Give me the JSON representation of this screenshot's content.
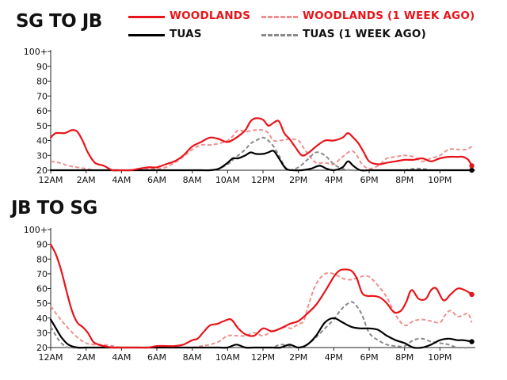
{
  "legend": [
    {
      "label": "WOODLANDS",
      "color": "#e8141a",
      "dash": false
    },
    {
      "label": "WOODLANDS (1 WEEK AGO)",
      "color": "#f08f8f",
      "dash": true
    },
    {
      "label": "TUAS",
      "color": "#000000",
      "dash": false
    },
    {
      "label": "TUAS (1 WEEK AGO)",
      "color": "#8a8a8a",
      "dash": true
    }
  ],
  "chart_data": [
    {
      "type": "line",
      "title": "SG TO JB",
      "xlabel": "",
      "ylabel": "",
      "ylim": [
        20,
        100
      ],
      "xlim": [
        0,
        24
      ],
      "yticks": [
        "20",
        "30",
        "40",
        "50",
        "60",
        "70",
        "80",
        "90",
        "100+"
      ],
      "xticks": [
        "12AM",
        "2AM",
        "4AM",
        "6AM",
        "8AM",
        "10AM",
        "12PM",
        "2PM",
        "4PM",
        "6PM",
        "8PM",
        "10PM"
      ],
      "grid": false,
      "series": [
        {
          "name": "WOODLANDS",
          "color": "#e8141a",
          "dashed": false,
          "width": 2.2,
          "endpoint": true,
          "x": [
            0,
            0.3,
            0.8,
            1.2,
            1.5,
            1.8,
            2.1,
            2.5,
            3,
            3.5,
            4,
            4.5,
            5,
            5.5,
            6,
            6.5,
            7,
            7.5,
            8,
            8.5,
            9,
            9.5,
            10,
            10.5,
            11,
            11.3,
            11.6,
            12,
            12.3,
            12.6,
            12.9,
            13.2,
            13.5,
            13.8,
            14.2,
            14.6,
            15,
            15.5,
            16,
            16.5,
            16.8,
            17.1,
            17.4,
            17.7,
            18,
            18.5,
            19,
            19.5,
            20,
            20.5,
            21,
            21.5,
            22,
            22.5,
            23,
            23.3,
            23.6,
            23.8
          ],
          "y": [
            42,
            45,
            45,
            47,
            46,
            40,
            32,
            25,
            23,
            20,
            20,
            20,
            21,
            22,
            22,
            24,
            26,
            30,
            36,
            39,
            42,
            41,
            39,
            42,
            47,
            53,
            55,
            54,
            50,
            52,
            53,
            45,
            41,
            36,
            30,
            32,
            36,
            40,
            40,
            42,
            45,
            42,
            38,
            32,
            26,
            24,
            25,
            26,
            27,
            27,
            28,
            26,
            28,
            29,
            29,
            29,
            27,
            23
          ]
        },
        {
          "name": "WOODLANDS (1 WEEK AGO)",
          "color": "#f08f8f",
          "dashed": true,
          "width": 2,
          "endpoint": false,
          "x": [
            0,
            0.5,
            1,
            1.5,
            2,
            2.5,
            3,
            3.5,
            4,
            4.5,
            5,
            5.5,
            6,
            6.5,
            7,
            7.5,
            8,
            8.5,
            9,
            9.5,
            10,
            10.3,
            10.6,
            11,
            11.5,
            12,
            12.3,
            12.6,
            13,
            13.5,
            14,
            14.3,
            14.6,
            15,
            15.5,
            16,
            16.3,
            16.6,
            17,
            17.3,
            17.6,
            18,
            18.5,
            19,
            19.5,
            20,
            20.5,
            21,
            21.5,
            22,
            22.5,
            23,
            23.5,
            23.8
          ],
          "y": [
            26,
            25,
            23,
            22,
            21,
            20,
            20,
            20,
            20,
            20,
            20,
            21,
            21,
            22,
            25,
            29,
            34,
            37,
            37,
            38,
            40,
            43,
            47,
            46,
            47,
            47,
            45,
            40,
            40,
            41,
            40,
            35,
            30,
            25,
            25,
            24,
            27,
            30,
            33,
            30,
            24,
            21,
            23,
            28,
            29,
            30,
            29,
            26,
            28,
            30,
            34,
            34,
            34,
            36
          ]
        },
        {
          "name": "TUAS",
          "color": "#000000",
          "dashed": false,
          "width": 2.2,
          "endpoint": true,
          "x": [
            0,
            1,
            2,
            3,
            4,
            5,
            6,
            7,
            8,
            8.5,
            9,
            9.5,
            10,
            10.3,
            10.6,
            11,
            11.3,
            11.6,
            12,
            12.3,
            12.6,
            12.9,
            13.3,
            13.7,
            14.2,
            14.7,
            15.2,
            15.6,
            16,
            16.5,
            16.8,
            17.1,
            17.5,
            18,
            18.5,
            19,
            19.5,
            20,
            21,
            22,
            23,
            23.8
          ],
          "y": [
            20,
            20,
            20,
            20,
            20,
            20,
            20,
            20,
            20,
            20,
            20,
            21,
            25,
            28,
            28,
            30,
            32,
            31,
            31,
            32,
            33,
            28,
            21,
            20,
            20,
            21,
            23,
            21,
            20,
            22,
            26,
            23,
            20,
            20,
            20,
            20,
            20,
            20,
            20,
            20,
            20,
            20
          ]
        },
        {
          "name": "TUAS (1 WEEK AGO)",
          "color": "#8a8a8a",
          "dashed": true,
          "width": 2,
          "endpoint": false,
          "x": [
            0,
            1,
            2,
            3,
            4,
            5,
            6,
            7,
            8,
            9,
            9.5,
            10,
            10.3,
            10.6,
            11,
            11.3,
            11.6,
            12,
            12.3,
            12.6,
            12.9,
            13.2,
            13.5,
            14,
            14.5,
            15,
            15.5,
            16,
            16.5,
            17,
            17.5,
            18,
            18.5,
            19,
            19.5,
            20,
            20.5,
            21,
            21.5,
            22,
            22.5,
            23,
            23.8
          ],
          "y": [
            20,
            20,
            20,
            20,
            20,
            20,
            20,
            20,
            20,
            20,
            21,
            24,
            27,
            30,
            34,
            38,
            40,
            42,
            40,
            36,
            30,
            23,
            20,
            22,
            27,
            32,
            30,
            24,
            21,
            20,
            20,
            20,
            20,
            20,
            20,
            20,
            21,
            21,
            20,
            20,
            20,
            20,
            20
          ]
        }
      ]
    },
    {
      "type": "line",
      "title": "JB TO SG",
      "xlabel": "",
      "ylabel": "",
      "ylim": [
        20,
        100
      ],
      "xlim": [
        0,
        24
      ],
      "yticks": [
        "20",
        "30",
        "40",
        "50",
        "60",
        "70",
        "80",
        "90",
        "100+"
      ],
      "xticks": [
        "12AM",
        "2AM",
        "4AM",
        "6AM",
        "8AM",
        "10AM",
        "12PM",
        "2PM",
        "4PM",
        "6PM",
        "8PM",
        "10PM"
      ],
      "grid": false,
      "series": [
        {
          "name": "WOODLANDS",
          "color": "#e8141a",
          "dashed": false,
          "width": 2.2,
          "endpoint": true,
          "x": [
            0,
            0.3,
            0.6,
            0.9,
            1.2,
            1.5,
            1.8,
            2.1,
            2.4,
            2.7,
            3,
            3.5,
            4,
            4.5,
            5,
            5.5,
            6,
            6.5,
            7,
            7.5,
            8,
            8.3,
            8.6,
            9,
            9.4,
            9.8,
            10.2,
            10.6,
            11,
            11.5,
            12,
            12.5,
            13,
            13.5,
            14,
            14.5,
            15,
            15.5,
            16,
            16.3,
            16.6,
            17,
            17.3,
            17.6,
            17.9,
            18.2,
            18.6,
            19,
            19.4,
            19.8,
            20.1,
            20.4,
            20.8,
            21.2,
            21.5,
            21.8,
            22.2,
            22.6,
            23,
            23.4,
            23.8
          ],
          "y": [
            90,
            83,
            72,
            58,
            45,
            37,
            34,
            30,
            24,
            22,
            21,
            20,
            20,
            20,
            20,
            20,
            21,
            21,
            21,
            22,
            25,
            26,
            30,
            35,
            36,
            38,
            39,
            33,
            29,
            28,
            33,
            31,
            33,
            36,
            38,
            43,
            49,
            58,
            68,
            72,
            73,
            72,
            67,
            57,
            55,
            55,
            54,
            50,
            44,
            45,
            51,
            59,
            53,
            53,
            59,
            60,
            52,
            56,
            60,
            59,
            56
          ]
        },
        {
          "name": "WOODLANDS (1 WEEK AGO)",
          "color": "#f08f8f",
          "dashed": true,
          "width": 2,
          "endpoint": false,
          "x": [
            0,
            0.5,
            1,
            1.5,
            2,
            2.5,
            3,
            3.5,
            4,
            4.5,
            5,
            5.5,
            6,
            6.5,
            7,
            7.5,
            8,
            8.5,
            9,
            9.5,
            10,
            10.5,
            11,
            11.5,
            12,
            12.5,
            13,
            13.3,
            13.6,
            14,
            14.3,
            14.6,
            15,
            15.5,
            16,
            16.5,
            17,
            17.5,
            18,
            18.5,
            19,
            19.5,
            20,
            20.5,
            21,
            21.5,
            22,
            22.3,
            22.6,
            23,
            23.3,
            23.6,
            23.8
          ],
          "y": [
            48,
            40,
            33,
            27,
            23,
            22,
            22,
            21,
            20,
            20,
            20,
            20,
            20,
            20,
            20,
            20,
            20,
            21,
            22,
            24,
            28,
            28,
            28,
            30,
            28,
            31,
            33,
            34,
            33,
            36,
            38,
            50,
            63,
            70,
            70,
            67,
            66,
            68,
            68,
            62,
            54,
            42,
            35,
            38,
            39,
            38,
            37,
            42,
            45,
            41,
            42,
            43,
            37
          ]
        },
        {
          "name": "TUAS",
          "color": "#000000",
          "dashed": false,
          "width": 2.2,
          "endpoint": true,
          "x": [
            0,
            0.3,
            0.6,
            1,
            1.5,
            2,
            2.5,
            3,
            4,
            5,
            6,
            7,
            8,
            9,
            9.5,
            10,
            10.5,
            11,
            11.5,
            12,
            12.5,
            13,
            13.5,
            14,
            14.5,
            15,
            15.5,
            16,
            16.5,
            17,
            17.5,
            18,
            18.5,
            19,
            19.5,
            20,
            20.5,
            21,
            21.5,
            22,
            22.5,
            23,
            23.3,
            23.8
          ],
          "y": [
            39,
            33,
            27,
            22,
            20,
            20,
            20,
            20,
            20,
            20,
            20,
            20,
            20,
            20,
            20,
            20,
            22,
            20,
            20,
            20,
            20,
            20,
            22,
            20,
            22,
            28,
            37,
            40,
            37,
            34,
            33,
            33,
            32,
            28,
            25,
            23,
            20,
            20,
            22,
            25,
            26,
            25,
            25,
            24
          ]
        },
        {
          "name": "TUAS (1 WEEK AGO)",
          "color": "#8a8a8a",
          "dashed": true,
          "width": 2,
          "endpoint": false,
          "x": [
            0,
            0.3,
            0.6,
            1,
            1.5,
            2,
            3,
            4,
            5,
            6,
            7,
            8,
            9,
            10,
            11,
            12,
            12.5,
            13,
            13.5,
            14,
            14.5,
            15,
            15.5,
            16,
            16.3,
            16.6,
            17,
            17.3,
            17.6,
            18,
            18.5,
            19,
            19.5,
            20,
            20.5,
            21,
            21.5,
            22,
            22.5,
            23,
            23.8
          ],
          "y": [
            34,
            28,
            23,
            20,
            20,
            20,
            20,
            20,
            20,
            20,
            20,
            20,
            20,
            20,
            20,
            20,
            20,
            22,
            21,
            20,
            22,
            27,
            33,
            39,
            44,
            48,
            51,
            48,
            42,
            30,
            25,
            22,
            21,
            21,
            25,
            26,
            24,
            23,
            22,
            20,
            20
          ]
        }
      ]
    }
  ]
}
